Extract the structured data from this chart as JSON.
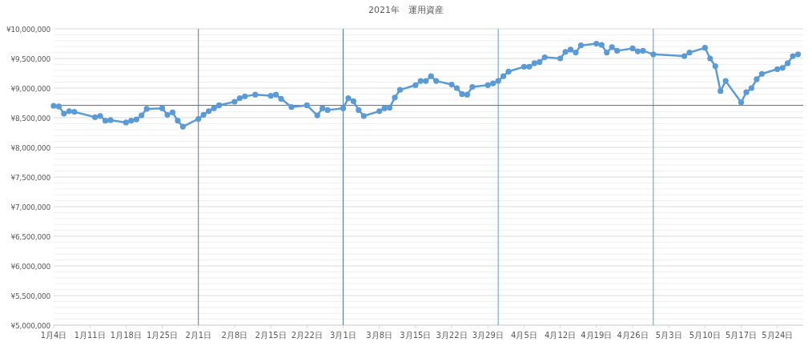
{
  "chart_data": {
    "type": "line",
    "title": "2021年　運用資産",
    "x": [
      "2021-01-04",
      "2021-01-05",
      "2021-01-06",
      "2021-01-07",
      "2021-01-08",
      "2021-01-12",
      "2021-01-13",
      "2021-01-14",
      "2021-01-15",
      "2021-01-18",
      "2021-01-19",
      "2021-01-20",
      "2021-01-21",
      "2021-01-22",
      "2021-01-25",
      "2021-01-26",
      "2021-01-27",
      "2021-01-28",
      "2021-01-29",
      "2021-02-01",
      "2021-02-02",
      "2021-02-03",
      "2021-02-04",
      "2021-02-05",
      "2021-02-08",
      "2021-02-09",
      "2021-02-10",
      "2021-02-12",
      "2021-02-15",
      "2021-02-16",
      "2021-02-17",
      "2021-02-19",
      "2021-02-22",
      "2021-02-24",
      "2021-02-25",
      "2021-02-26",
      "2021-03-01",
      "2021-03-02",
      "2021-03-03",
      "2021-03-04",
      "2021-03-05",
      "2021-03-08",
      "2021-03-09",
      "2021-03-10",
      "2021-03-11",
      "2021-03-12",
      "2021-03-15",
      "2021-03-16",
      "2021-03-17",
      "2021-03-18",
      "2021-03-19",
      "2021-03-22",
      "2021-03-23",
      "2021-03-24",
      "2021-03-25",
      "2021-03-26",
      "2021-03-29",
      "2021-03-30",
      "2021-03-31",
      "2021-04-01",
      "2021-04-02",
      "2021-04-05",
      "2021-04-06",
      "2021-04-07",
      "2021-04-08",
      "2021-04-09",
      "2021-04-12",
      "2021-04-13",
      "2021-04-14",
      "2021-04-15",
      "2021-04-16",
      "2021-04-19",
      "2021-04-20",
      "2021-04-21",
      "2021-04-22",
      "2021-04-23",
      "2021-04-26",
      "2021-04-27",
      "2021-04-28",
      "2021-04-30",
      "2021-05-06",
      "2021-05-07",
      "2021-05-10",
      "2021-05-11",
      "2021-05-12",
      "2021-05-13",
      "2021-05-14",
      "2021-05-17",
      "2021-05-18",
      "2021-05-19",
      "2021-05-20",
      "2021-05-21",
      "2021-05-24",
      "2021-05-25",
      "2021-05-26",
      "2021-05-27",
      "2021-05-28"
    ],
    "series": [
      {
        "color": "#5b9bd5",
        "values": [
          8700000,
          8690000,
          8570000,
          8610000,
          8600000,
          8510000,
          8530000,
          8450000,
          8460000,
          8420000,
          8450000,
          8470000,
          8540000,
          8650000,
          8660000,
          8550000,
          8590000,
          8450000,
          8350000,
          8480000,
          8550000,
          8610000,
          8660000,
          8710000,
          8770000,
          8830000,
          8860000,
          8890000,
          8870000,
          8890000,
          8820000,
          8680000,
          8710000,
          8540000,
          8660000,
          8630000,
          8660000,
          8830000,
          8780000,
          8630000,
          8530000,
          8610000,
          8660000,
          8670000,
          8840000,
          8970000,
          9050000,
          9120000,
          9120000,
          9200000,
          9120000,
          9060000,
          9000000,
          8900000,
          8890000,
          9020000,
          9050000,
          9080000,
          9120000,
          9200000,
          9280000,
          9360000,
          9360000,
          9420000,
          9440000,
          9520000,
          9500000,
          9610000,
          9650000,
          9600000,
          9720000,
          9750000,
          9730000,
          9600000,
          9690000,
          9630000,
          9670000,
          9620000,
          9630000,
          9570000,
          9540000,
          9600000,
          9680000,
          9500000,
          9370000,
          8950000,
          9120000,
          8760000,
          8930000,
          9000000,
          9150000,
          9240000,
          9320000,
          9340000,
          9420000,
          9540000,
          9570000
        ]
      }
    ],
    "xlim": [
      "2021-01-04",
      "2021-05-29"
    ],
    "xticks": [
      {
        "value": "2021-01-04",
        "label": "1月4日"
      },
      {
        "value": "2021-01-11",
        "label": "1月11日"
      },
      {
        "value": "2021-01-18",
        "label": "1月18日"
      },
      {
        "value": "2021-01-25",
        "label": "1月25日"
      },
      {
        "value": "2021-02-01",
        "label": "2月1日"
      },
      {
        "value": "2021-02-08",
        "label": "2月8日"
      },
      {
        "value": "2021-02-15",
        "label": "2月15日"
      },
      {
        "value": "2021-02-22",
        "label": "2月22日"
      },
      {
        "value": "2021-03-01",
        "label": "3月1日"
      },
      {
        "value": "2021-03-08",
        "label": "3月8日"
      },
      {
        "value": "2021-03-15",
        "label": "3月15日"
      },
      {
        "value": "2021-03-22",
        "label": "3月22日"
      },
      {
        "value": "2021-03-29",
        "label": "3月29日"
      },
      {
        "value": "2021-04-05",
        "label": "4月5日"
      },
      {
        "value": "2021-04-12",
        "label": "4月12日"
      },
      {
        "value": "2021-04-19",
        "label": "4月19日"
      },
      {
        "value": "2021-04-26",
        "label": "4月26日"
      },
      {
        "value": "2021-05-03",
        "label": "5月3日"
      },
      {
        "value": "2021-05-10",
        "label": "5月10日"
      },
      {
        "value": "2021-05-17",
        "label": "5月17日"
      },
      {
        "value": "2021-05-24",
        "label": "5月24日"
      }
    ],
    "ylim": [
      5000000,
      10000000
    ],
    "yticks": [
      {
        "value": 5000000,
        "label": "¥5,000,000"
      },
      {
        "value": 5500000,
        "label": "¥5,500,000"
      },
      {
        "value": 6000000,
        "label": "¥6,000,000"
      },
      {
        "value": 6500000,
        "label": "¥6,500,000"
      },
      {
        "value": 7000000,
        "label": "¥7,000,000"
      },
      {
        "value": 7500000,
        "label": "¥7,500,000"
      },
      {
        "value": 8000000,
        "label": "¥8,000,000"
      },
      {
        "value": 8500000,
        "label": "¥8,500,000"
      },
      {
        "value": 9000000,
        "label": "¥9,000,000"
      },
      {
        "value": 9500000,
        "label": "¥9,500,000"
      },
      {
        "value": 10000000,
        "label": "¥10,000,000"
      }
    ],
    "ref_lines": [
      {
        "axis": "x",
        "value": "2021-02-01",
        "color": "#4a7ab0"
      },
      {
        "axis": "x",
        "value": "2021-03-01",
        "color": "#4a7ab0"
      },
      {
        "axis": "x",
        "value": "2021-03-31",
        "color": "#5b9bd5"
      },
      {
        "axis": "x",
        "value": "2021-04-30",
        "color": "#5b9bd5"
      },
      {
        "axis": "y",
        "value": 8710000,
        "color": "#4a7ab0"
      }
    ],
    "grid": "y",
    "marker": "circle",
    "line_style": "solid"
  }
}
